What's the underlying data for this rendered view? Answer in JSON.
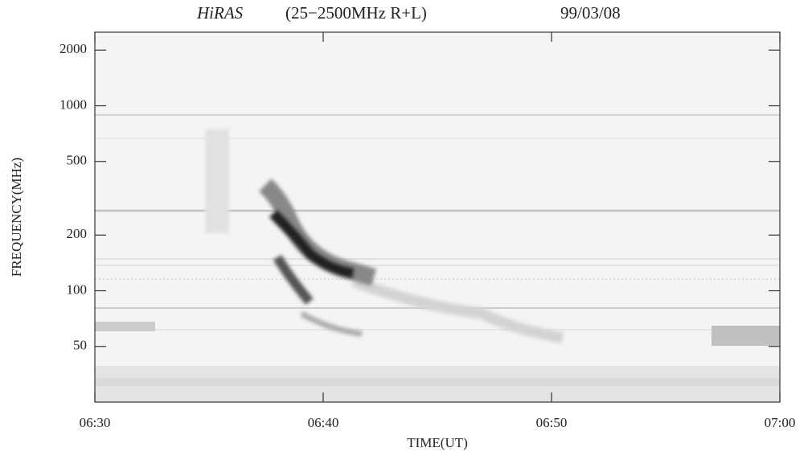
{
  "chart_data": {
    "type": "spectrogram",
    "title": {
      "instrument": "HiRAS",
      "band": "(25−2500MHz R+L)",
      "date": "99/03/08"
    },
    "x_label": "TIME(UT)",
    "y_label": "FREQUENCY(MHz)",
    "xlim": [
      390,
      420
    ],
    "xticks": [
      {
        "value": 390,
        "label": "06:30"
      },
      {
        "value": 400,
        "label": "06:40"
      },
      {
        "value": 410,
        "label": "06:50"
      },
      {
        "value": 420,
        "label": "07:00"
      }
    ],
    "ylim": [
      25,
      2500
    ],
    "y_scale": "log",
    "yticks": [
      50,
      100,
      200,
      500,
      1000,
      2000
    ]
  }
}
